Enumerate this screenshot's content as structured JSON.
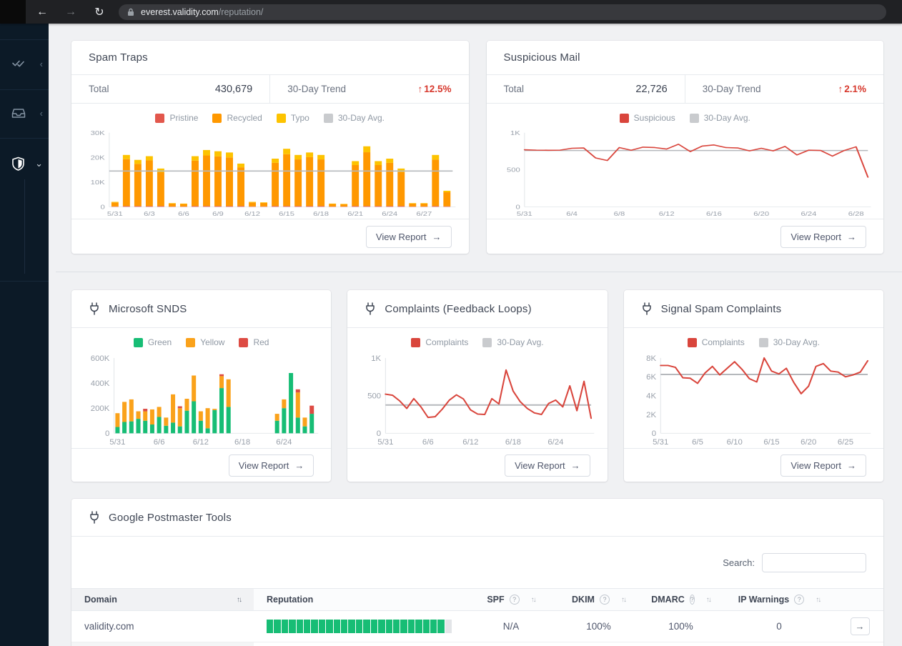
{
  "browser": {
    "url_host": "everest.validity.com",
    "url_path": "/reputation/",
    "back_icon": "←",
    "forward_icon": "→",
    "reload_icon": "↻"
  },
  "sidebar": {
    "items": [
      {
        "name": "validation",
        "icon": "double-check-icon",
        "chevron": "‹"
      },
      {
        "name": "inbox",
        "icon": "inbox-icon",
        "chevron": "‹"
      },
      {
        "name": "reputation",
        "icon": "shield-icon",
        "chevron": "⌄"
      }
    ]
  },
  "ui": {
    "view_report": "View Report",
    "arrow_right": "→",
    "trend_arrow": "↑",
    "search_label": "Search:",
    "sort_icon": "↑↓",
    "help_icon": "?"
  },
  "cards": {
    "spam_traps": {
      "title": "Spam Traps",
      "total_label": "Total",
      "total_value": "430,679",
      "trend_label": "30-Day Trend",
      "trend_value": "12.5%"
    },
    "suspicious_mail": {
      "title": "Suspicious Mail",
      "total_label": "Total",
      "total_value": "22,726",
      "trend_label": "30-Day Trend",
      "trend_value": "2.1%"
    },
    "snds": {
      "title": "Microsoft SNDS"
    },
    "fbl": {
      "title": "Complaints (Feedback Loops)"
    },
    "signal_spam": {
      "title": "Signal Spam Complaints"
    },
    "gpt": {
      "title": "Google Postmaster Tools",
      "table": {
        "columns": [
          {
            "label": "Domain",
            "sortable": true
          },
          {
            "label": "Reputation"
          },
          {
            "label": "SPF",
            "help": true,
            "sortable": true
          },
          {
            "label": "DKIM",
            "help": true,
            "sortable": true
          },
          {
            "label": "DMARC",
            "help": true,
            "sortable": true
          },
          {
            "label": "IP Warnings",
            "help": true,
            "sortable": true
          }
        ],
        "rows": [
          {
            "domain": "validity.com",
            "spf": "N/A",
            "dkim": "100%",
            "dmarc": "100%",
            "ip_warnings": "0",
            "reputation": {
              "segments": 25,
              "filled": 24
            }
          }
        ]
      }
    }
  },
  "colors": {
    "pristine_red": "#e2574c",
    "recycled_orange": "#ff9800",
    "typo_yellow": "#fdc300",
    "avg_gray": "#c9cbce",
    "line_red": "#d9453c",
    "snds_green": "#17bd75",
    "snds_yellow": "#faa21b",
    "snds_red": "#dd4b43",
    "trend_red": "#d7382d",
    "segment_green": "#17bd75",
    "segment_empty": "#e3e5e8"
  },
  "chart_data": [
    {
      "id": "spam_traps",
      "type": "stacked_bar",
      "n": 30,
      "ml": 38,
      "ylim": [
        0,
        30000
      ],
      "y_ticks": [
        "0",
        "10K",
        "20K",
        "30K"
      ],
      "y_tick_values": [
        0,
        10000,
        20000,
        30000
      ],
      "x_ticks": [
        "5/31",
        "6/3",
        "6/6",
        "6/9",
        "6/12",
        "6/15",
        "6/18",
        "6/21",
        "6/24",
        "6/27"
      ],
      "x_tick_indices": [
        0,
        3,
        6,
        9,
        12,
        15,
        18,
        21,
        24,
        27
      ],
      "legend": [
        {
          "label": "Pristine",
          "color": "#e2574c"
        },
        {
          "label": "Recycled",
          "color": "#ff9800"
        },
        {
          "label": "Typo",
          "color": "#fdc300"
        },
        {
          "label": "30-Day Avg.",
          "color": "#c9cbce"
        }
      ],
      "series": [
        {
          "name": "Pristine",
          "color": "#e2574c",
          "values": [
            150,
            300,
            300,
            300,
            300,
            120,
            120,
            300,
            300,
            300,
            300,
            300,
            150,
            150,
            300,
            300,
            300,
            300,
            300,
            120,
            120,
            300,
            300,
            300,
            300,
            300,
            120,
            120,
            300,
            200
          ]
        },
        {
          "name": "Recycled",
          "color": "#ff9800",
          "values": [
            1600,
            19000,
            17100,
            18500,
            13700,
            1180,
            1000,
            18400,
            20500,
            20100,
            19700,
            15700,
            1600,
            1430,
            17500,
            21000,
            18900,
            19800,
            18900,
            1000,
            920,
            16600,
            21800,
            16600,
            17500,
            13800,
            1180,
            1180,
            18800,
            5700
          ]
        },
        {
          "name": "Typo",
          "color": "#fdc300",
          "values": [
            250,
            1700,
            1600,
            1700,
            1500,
            200,
            180,
            1800,
            2200,
            2100,
            2000,
            1500,
            250,
            220,
            1700,
            2200,
            1800,
            1900,
            1800,
            180,
            160,
            1600,
            2400,
            1600,
            1700,
            1400,
            200,
            200,
            1900,
            600
          ]
        }
      ],
      "avg_line": {
        "name": "30-Day Avg.",
        "color": "#b5b8bc",
        "value": 14500
      }
    },
    {
      "id": "suspicious_mail",
      "type": "line",
      "n": 30,
      "ml": 38,
      "ylim": [
        0,
        1000
      ],
      "y_ticks": [
        "0",
        "500",
        "1K"
      ],
      "y_tick_values": [
        0,
        500,
        1000
      ],
      "x_ticks": [
        "5/31",
        "6/4",
        "6/8",
        "6/12",
        "6/16",
        "6/20",
        "6/24",
        "6/28"
      ],
      "x_tick_indices": [
        0,
        4,
        8,
        12,
        16,
        20,
        24,
        28
      ],
      "legend": [
        {
          "label": "Suspicious",
          "color": "#d9453c"
        },
        {
          "label": "30-Day Avg.",
          "color": "#c9cbce"
        }
      ],
      "series": [
        {
          "name": "Suspicious",
          "color": "#d9453c",
          "values": [
            770,
            765,
            763,
            765,
            790,
            795,
            660,
            625,
            800,
            763,
            805,
            800,
            780,
            845,
            745,
            820,
            835,
            800,
            795,
            755,
            790,
            755,
            815,
            700,
            765,
            760,
            685,
            760,
            810,
            400
          ]
        }
      ],
      "avg_line": {
        "name": "30-Day Avg.",
        "color": "#b5b8bc",
        "value": 760
      }
    },
    {
      "id": "snds",
      "type": "stacked_bar",
      "n": 29,
      "ml": 44,
      "ylim": [
        0,
        600000
      ],
      "y_ticks": [
        "0",
        "200K",
        "400K",
        "600K"
      ],
      "y_tick_values": [
        0,
        200000,
        400000,
        600000
      ],
      "x_ticks": [
        "5/31",
        "6/6",
        "6/12",
        "6/18",
        "6/24"
      ],
      "x_tick_indices": [
        0,
        6,
        12,
        18,
        24
      ],
      "legend": [
        {
          "label": "Green",
          "color": "#17bd75"
        },
        {
          "label": "Yellow",
          "color": "#faa21b"
        },
        {
          "label": "Red",
          "color": "#dd4b43"
        }
      ],
      "series": [
        {
          "name": "Green",
          "color": "#17bd75",
          "values": [
            50000,
            90000,
            95000,
            115000,
            100000,
            70000,
            130000,
            60000,
            85000,
            55000,
            180000,
            255000,
            100000,
            40000,
            185000,
            360000,
            210000,
            0,
            0,
            0,
            0,
            0,
            0,
            100000,
            200000,
            480000,
            125000,
            55000,
            155000
          ]
        },
        {
          "name": "Yellow",
          "color": "#faa21b",
          "values": [
            110000,
            160000,
            175000,
            60000,
            75000,
            120000,
            80000,
            65000,
            225000,
            145000,
            95000,
            205000,
            75000,
            160000,
            10000,
            95000,
            220000,
            0,
            0,
            0,
            0,
            0,
            0,
            55000,
            70000,
            0,
            200000,
            70000,
            0
          ]
        },
        {
          "name": "Red",
          "color": "#dd4b43",
          "values": [
            0,
            0,
            0,
            0,
            20000,
            0,
            0,
            0,
            0,
            15000,
            0,
            0,
            0,
            0,
            0,
            15000,
            0,
            0,
            0,
            0,
            0,
            0,
            0,
            0,
            0,
            0,
            25000,
            0,
            65000
          ]
        }
      ]
    },
    {
      "id": "fbl",
      "type": "line",
      "n": 30,
      "ml": 38,
      "ylim": [
        0,
        1000
      ],
      "y_ticks": [
        "0",
        "500",
        "1K"
      ],
      "y_tick_values": [
        0,
        500,
        1000
      ],
      "x_ticks": [
        "5/31",
        "6/6",
        "6/12",
        "6/18",
        "6/24"
      ],
      "x_tick_indices": [
        0,
        6,
        12,
        18,
        24
      ],
      "legend": [
        {
          "label": "Complaints",
          "color": "#d9453c"
        },
        {
          "label": "30-Day Avg.",
          "color": "#c9cbce"
        }
      ],
      "series": [
        {
          "name": "Complaints",
          "color": "#d9453c",
          "values": [
            520,
            505,
            430,
            330,
            460,
            350,
            210,
            220,
            320,
            440,
            510,
            455,
            310,
            255,
            250,
            460,
            390,
            840,
            560,
            420,
            330,
            270,
            250,
            395,
            440,
            350,
            630,
            300,
            690,
            200
          ]
        }
      ],
      "avg_line": {
        "name": "30-Day Avg.",
        "color": "#b5b8bc",
        "value": 375
      }
    },
    {
      "id": "signal_spam",
      "type": "line",
      "n": 29,
      "ml": 36,
      "ylim": [
        0,
        8000
      ],
      "y_ticks": [
        "0",
        "2K",
        "4K",
        "6K",
        "8K"
      ],
      "y_tick_values": [
        0,
        2000,
        4000,
        6000,
        8000
      ],
      "x_ticks": [
        "5/31",
        "6/5",
        "6/10",
        "6/15",
        "6/20",
        "6/25"
      ],
      "x_tick_indices": [
        0,
        5,
        10,
        15,
        20,
        25
      ],
      "legend": [
        {
          "label": "Complaints",
          "color": "#d9453c"
        },
        {
          "label": "30-Day Avg.",
          "color": "#c9cbce"
        }
      ],
      "series": [
        {
          "name": "Complaints",
          "color": "#d9453c",
          "values": [
            7200,
            7200,
            7000,
            5900,
            5850,
            5300,
            6400,
            7100,
            6200,
            6900,
            7600,
            6800,
            5800,
            5450,
            8000,
            6600,
            6300,
            6900,
            5400,
            4200,
            5000,
            7100,
            7400,
            6600,
            6500,
            6000,
            6200,
            6500,
            7700
          ]
        }
      ],
      "avg_line": {
        "name": "30-Day Avg.",
        "color": "#b5b8bc",
        "value": 6250
      }
    }
  ]
}
